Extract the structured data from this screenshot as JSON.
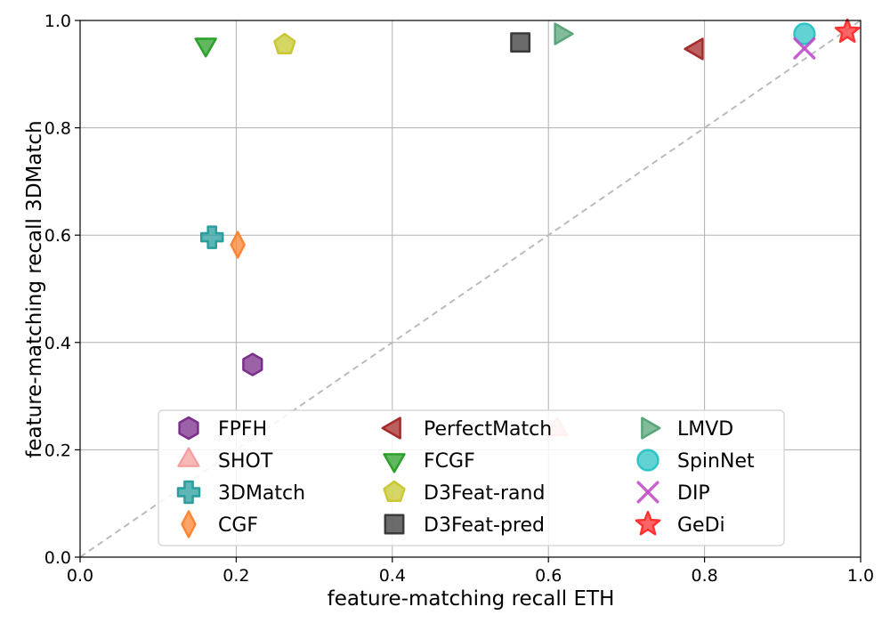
{
  "chart_data": {
    "type": "scatter",
    "title": "",
    "xlabel": "feature-matching recall ETH",
    "ylabel": "feature-matching recall 3DMatch",
    "xlim": [
      0.0,
      1.0
    ],
    "ylim": [
      0.0,
      1.0
    ],
    "xticks": [
      0.0,
      0.2,
      0.4,
      0.6,
      0.8,
      1.0
    ],
    "yticks": [
      0.0,
      0.2,
      0.4,
      0.6,
      0.8,
      1.0
    ],
    "xtick_labels": [
      "0.0",
      "0.2",
      "0.4",
      "0.6",
      "0.8",
      "1.0"
    ],
    "ytick_labels": [
      "0.0",
      "0.2",
      "0.4",
      "0.6",
      "0.8",
      "1.0"
    ],
    "grid": true,
    "diagonal_reference": true,
    "legend_placement": "lower-center",
    "legend_columns": 3,
    "series": [
      {
        "name": "FPFH",
        "x": 0.221,
        "y": 0.359,
        "marker": "hexagon",
        "color": "#7b2d8b"
      },
      {
        "name": "SHOT",
        "x": 0.611,
        "y": 0.238,
        "marker": "triangle-up",
        "color": "#f4a0a0"
      },
      {
        "name": "3DMatch",
        "x": 0.169,
        "y": 0.596,
        "marker": "plus",
        "color": "#2a9d9d"
      },
      {
        "name": "CGF",
        "x": 0.202,
        "y": 0.582,
        "marker": "diamond",
        "color": "#ff8533"
      },
      {
        "name": "PerfectMatch",
        "x": 0.79,
        "y": 0.947,
        "marker": "triangle-left",
        "color": "#a52a2a"
      },
      {
        "name": "FCGF",
        "x": 0.161,
        "y": 0.955,
        "marker": "triangle-down",
        "color": "#2ca02c"
      },
      {
        "name": "D3Feat-rand",
        "x": 0.262,
        "y": 0.955,
        "marker": "pentagon",
        "color": "#c8c832"
      },
      {
        "name": "D3Feat-pred",
        "x": 0.564,
        "y": 0.959,
        "marker": "square",
        "color": "#3a3a3a"
      },
      {
        "name": "LMVD",
        "x": 0.616,
        "y": 0.975,
        "marker": "triangle-right",
        "color": "#5aa57a"
      },
      {
        "name": "SpinNet",
        "x": 0.928,
        "y": 0.975,
        "marker": "circle",
        "color": "#2ec4c4"
      },
      {
        "name": "DIP",
        "x": 0.928,
        "y": 0.948,
        "marker": "x",
        "color": "#c050c8"
      },
      {
        "name": "GeDi",
        "x": 0.983,
        "y": 0.979,
        "marker": "star",
        "color": "#ff3333"
      }
    ]
  }
}
